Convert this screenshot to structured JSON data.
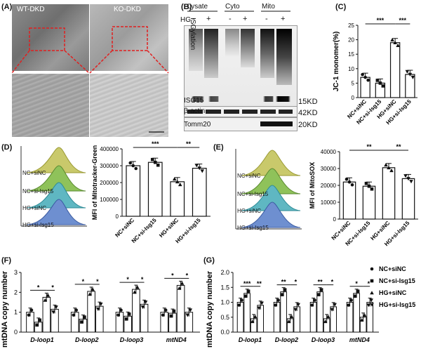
{
  "panels": {
    "A": {
      "label": "(A)",
      "wt_title": "WT-DKD",
      "ko_title": "KO-DKD"
    },
    "B": {
      "label": "(B)",
      "groups": [
        "Lysate",
        "Cyto",
        "Mito"
      ],
      "hg_label": "HG",
      "hg_signs": [
        "-",
        "+",
        "-",
        "+",
        "-",
        "+"
      ],
      "vertical_label": "ISGylation",
      "rows": [
        {
          "name": "ISG15",
          "kd": "15KD"
        },
        {
          "name": "β-actin",
          "kd": "42KD"
        },
        {
          "name": "Tomm20",
          "kd": "20KD"
        }
      ]
    },
    "C": {
      "label": "(C)",
      "ylabel": "JC-1 monomer(%)",
      "sig": [
        "***",
        "***"
      ]
    },
    "D": {
      "label": "(D)",
      "ylabel": "MFI of Mitotracker-Green",
      "sig": [
        "***",
        "**"
      ],
      "flow_labels": [
        "NC+siNC",
        "NC+si-Isg15",
        "HG+siNC",
        "HG+si-Isg15"
      ]
    },
    "E": {
      "label": "(E)",
      "ylabel": "MFI of MitoSOX",
      "sig": [
        "**",
        "**"
      ],
      "flow_labels": [
        "NC+siNC",
        "NC+si-Isg15",
        "HG+siNC",
        "HG+si-Isg15"
      ]
    },
    "F": {
      "label": "(F)",
      "ylabel": "mtDNA copy number"
    },
    "G": {
      "label": "(G)",
      "ylabel": "mtDNA copy number"
    }
  },
  "legend": [
    "NC+siNC",
    "NC+si-Isg15",
    "HG+siNC",
    "HG+si-Isg15"
  ],
  "chart_data": [
    {
      "id": "C",
      "type": "bar",
      "categories": [
        "NC+siNC",
        "NC+si-Isg15",
        "HG+siNC",
        "HG+si-Isg15"
      ],
      "values": [
        7,
        5,
        19,
        8
      ],
      "ylabel": "JC-1 monomer(%)",
      "ylim": [
        0,
        25
      ],
      "yticks": [
        0,
        5,
        10,
        15,
        20,
        25
      ]
    },
    {
      "id": "D",
      "type": "bar",
      "categories": [
        "NC+siNC",
        "NC+si-Isg15",
        "HG+siNC",
        "HG+si-Isg15"
      ],
      "values": [
        300000,
        320000,
        205000,
        285000
      ],
      "ylabel": "MFI of Mitotracker-Green",
      "ylim": [
        0,
        400000
      ],
      "yticks": [
        0,
        100000,
        200000,
        300000,
        400000
      ]
    },
    {
      "id": "E",
      "type": "bar",
      "categories": [
        "NC+siNC",
        "NC+si-Isg15",
        "HG+siNC",
        "HG+si-Isg15"
      ],
      "values": [
        22000,
        19500,
        30500,
        24000
      ],
      "ylabel": "MFI of MitoSOX",
      "ylim": [
        0,
        40000
      ],
      "yticks": [
        0,
        10000,
        20000,
        30000,
        40000
      ]
    },
    {
      "id": "F",
      "type": "bar",
      "categories": [
        "D-loop1",
        "D-loop2",
        "D-loop3",
        "mtND4"
      ],
      "series": [
        {
          "name": "NC+siNC",
          "values": [
            1.0,
            1.0,
            1.0,
            1.0
          ]
        },
        {
          "name": "NC+si-Isg15",
          "values": [
            0.5,
            0.65,
            0.8,
            0.95
          ]
        },
        {
          "name": "HG+siNC",
          "values": [
            1.75,
            2.05,
            2.15,
            2.35
          ]
        },
        {
          "name": "HG+si-Isg15",
          "values": [
            1.15,
            1.3,
            1.4,
            1.0
          ]
        }
      ],
      "ylabel": "mtDNA copy number",
      "ylim": [
        0,
        3
      ],
      "yticks": [
        0,
        1,
        2,
        3
      ],
      "sig": [
        [
          "*",
          "*"
        ],
        [
          "*",
          "*"
        ],
        [
          "*",
          "*"
        ],
        [
          "*",
          "*"
        ]
      ]
    },
    {
      "id": "G",
      "type": "bar",
      "categories": [
        "D-loop1",
        "D-loop2",
        "D-loop3",
        "mtND4"
      ],
      "series": [
        {
          "name": "NC+siNC",
          "values": [
            1.0,
            1.0,
            1.0,
            1.0
          ]
        },
        {
          "name": "NC+si-Isg15",
          "values": [
            1.3,
            1.35,
            1.35,
            1.3
          ]
        },
        {
          "name": "HG+siNC",
          "values": [
            0.45,
            0.45,
            0.45,
            0.5
          ]
        },
        {
          "name": "HG+si-Isg15",
          "values": [
            0.9,
            0.85,
            0.85,
            1.0
          ]
        }
      ],
      "ylabel": "mtDNA copy number",
      "ylim": [
        0,
        2
      ],
      "yticks": [
        0.0,
        0.5,
        1.0,
        1.5,
        2.0
      ],
      "sig": [
        [
          "***",
          "**"
        ],
        [
          "**",
          "*"
        ],
        [
          "**",
          "*"
        ],
        [
          "*",
          "*"
        ]
      ]
    }
  ]
}
